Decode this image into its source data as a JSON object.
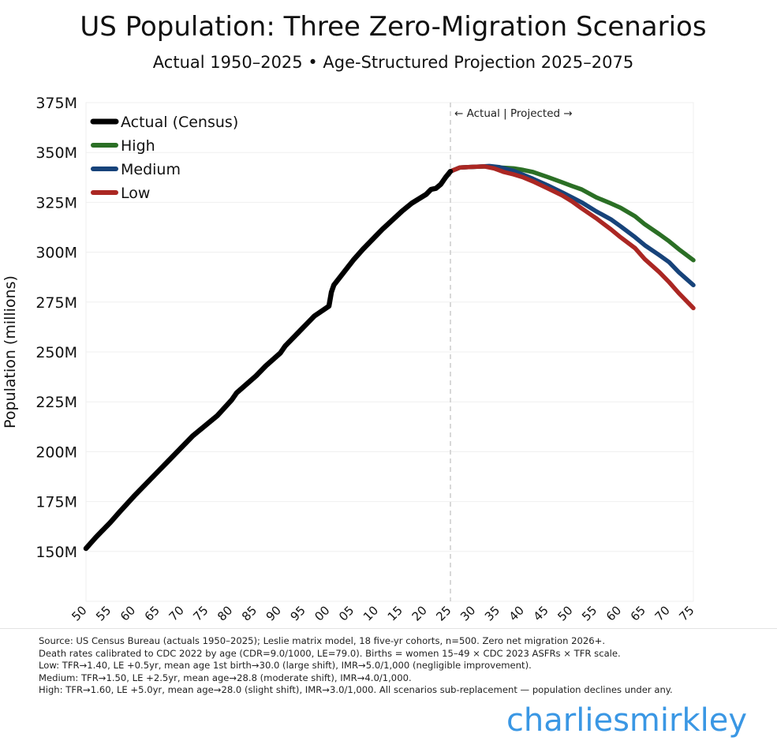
{
  "chart_data": {
    "type": "line",
    "title": "US Population: Three Zero-Migration Scenarios",
    "subtitle": "Actual 1950–2025 • Age-Structured Projection 2025–2075",
    "xlabel": "",
    "ylabel": "Population (millions)",
    "xlim": [
      1950,
      2075
    ],
    "ylim": [
      125,
      375
    ],
    "yticks": [
      150,
      175,
      200,
      225,
      250,
      275,
      300,
      325,
      350,
      375
    ],
    "ytick_labels": [
      "150M",
      "175M",
      "200M",
      "225M",
      "250M",
      "275M",
      "300M",
      "325M",
      "350M",
      "375M"
    ],
    "xticks": [
      1950,
      1955,
      1960,
      1965,
      1970,
      1975,
      1980,
      1985,
      1990,
      1995,
      2000,
      2005,
      2010,
      2015,
      2020,
      2025,
      2030,
      2035,
      2040,
      2045,
      2050,
      2055,
      2060,
      2065,
      2070,
      2075
    ],
    "xtick_labels": [
      "50",
      "55",
      "60",
      "65",
      "70",
      "75",
      "80",
      "85",
      "90",
      "95",
      "00",
      "05",
      "10",
      "15",
      "20",
      "25",
      "30",
      "35",
      "40",
      "45",
      "50",
      "55",
      "60",
      "65",
      "70",
      "75"
    ],
    "grid": true,
    "legend_position": "top-left",
    "divider": {
      "x": 2025,
      "label": "← Actual | Projected →"
    },
    "series": [
      {
        "name": "Actual (Census)",
        "color": "#000000",
        "x": [
          1950,
          1952,
          1955,
          1957,
          1960,
          1962,
          1965,
          1967,
          1970,
          1972,
          1975,
          1977,
          1980,
          1981,
          1985,
          1987,
          1990,
          1991,
          1995,
          1997,
          2000,
          2000.5,
          2001,
          2005,
          2007,
          2010,
          2011,
          2015,
          2017,
          2020,
          2021,
          2022,
          2023,
          2024,
          2025
        ],
        "values": [
          151.5,
          157,
          164.5,
          170,
          178,
          183,
          190.5,
          195.5,
          203,
          208,
          214,
          218,
          226,
          229.5,
          238,
          243,
          249.5,
          253,
          263,
          268,
          273,
          280,
          283.5,
          296,
          301.5,
          309,
          311.5,
          320.5,
          324.5,
          329,
          331.5,
          332,
          334,
          337.5,
          340.5
        ]
      },
      {
        "name": "High",
        "color": "#2b6f25",
        "x": [
          2025,
          2027,
          2030,
          2033,
          2035,
          2038,
          2040,
          2042,
          2045,
          2048,
          2050,
          2052,
          2055,
          2058,
          2060,
          2063,
          2065,
          2068,
          2070,
          2072,
          2075
        ],
        "values": [
          340.5,
          342.5,
          342.8,
          343,
          342.5,
          342,
          341.2,
          340.2,
          337.7,
          335,
          333.2,
          331.5,
          327.5,
          324.5,
          322.3,
          318,
          314,
          309,
          305.5,
          301.5,
          296
        ]
      },
      {
        "name": "Medium",
        "color": "#17437a",
        "x": [
          2025,
          2027,
          2030,
          2033,
          2035,
          2038,
          2040,
          2042,
          2045,
          2048,
          2050,
          2052,
          2055,
          2058,
          2060,
          2063,
          2065,
          2068,
          2070,
          2072,
          2075
        ],
        "values": [
          340.5,
          342.5,
          342.8,
          343.2,
          342.7,
          340.8,
          338.8,
          336.8,
          333.5,
          330,
          327.5,
          325,
          320.5,
          316.5,
          313,
          307.5,
          303.5,
          298.5,
          295,
          290,
          283.5
        ]
      },
      {
        "name": "Low",
        "color": "#ab2723",
        "x": [
          2025,
          2027,
          2030,
          2032,
          2034,
          2036,
          2038,
          2040,
          2042,
          2045,
          2048,
          2050,
          2052,
          2055,
          2058,
          2060,
          2063,
          2065,
          2068,
          2070,
          2072,
          2075
        ],
        "values": [
          340.5,
          342.5,
          342.8,
          343,
          342,
          340.2,
          339,
          337.5,
          335.5,
          332,
          328.5,
          325.5,
          322,
          317,
          311.5,
          307.5,
          302,
          296.5,
          290,
          285,
          279.5,
          272
        ]
      }
    ]
  },
  "notes": [
    "Source: US Census Bureau (actuals 1950–2025); Leslie matrix model, 18 five-yr cohorts, n=500. Zero net migration 2026+.",
    "Death rates calibrated to CDC 2022 by age (CDR=9.0/1000, LE=79.0). Births = women 15–49 × CDC 2023 ASFRs × TFR scale.",
    "Low: TFR→1.40, LE +0.5yr, mean age 1st birth→30.0 (large shift), IMR→5.0/1,000 (negligible improvement).",
    "Medium: TFR→1.50, LE +2.5yr, mean age→28.8 (moderate shift), IMR→4.0/1,000.",
    "High: TFR→1.60, LE +5.0yr, mean age→28.0 (slight shift), IMR→3.0/1,000. All scenarios sub-replacement — population declines under any."
  ],
  "brand": "charliesmirkley"
}
